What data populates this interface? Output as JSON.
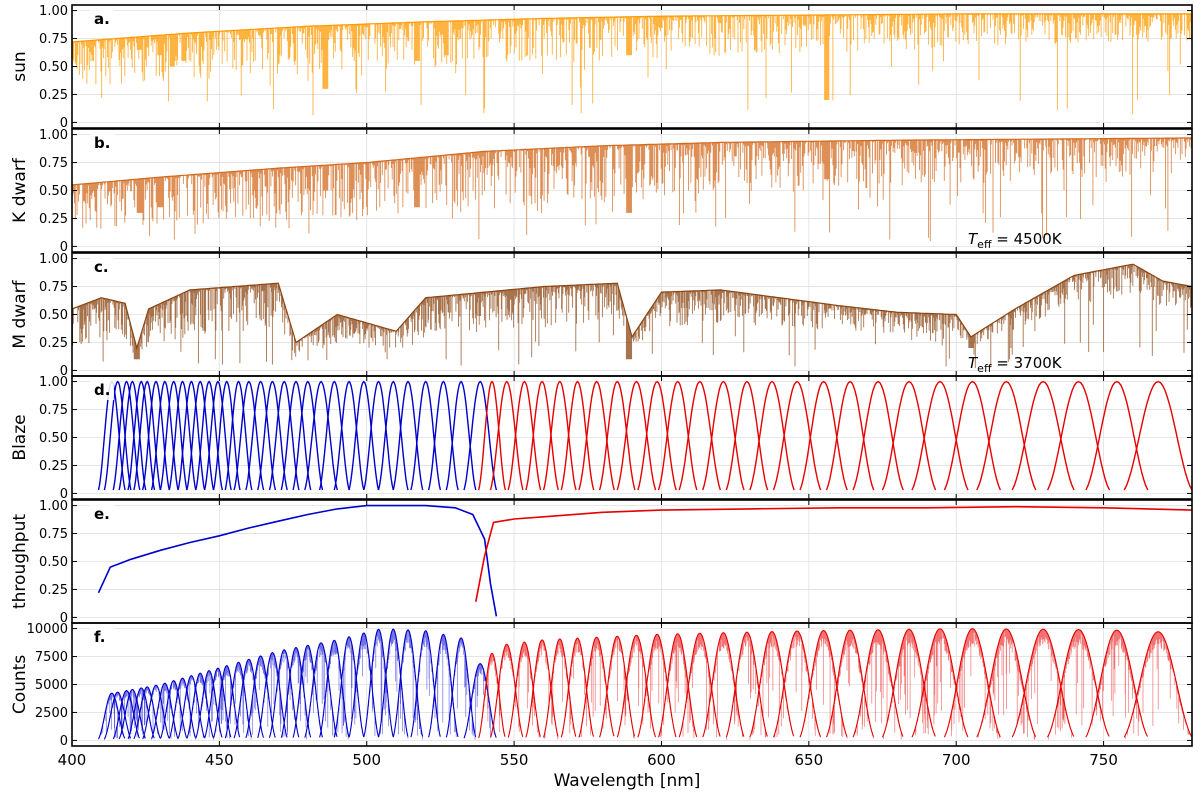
{
  "chart_data": {
    "type": "line",
    "xlabel": "Wavelength [nm]",
    "xlim": [
      400,
      780
    ],
    "xticks": [
      "400",
      "450",
      "500",
      "550",
      "600",
      "650",
      "700",
      "750"
    ],
    "xtick_values": [
      400,
      450,
      500,
      550,
      600,
      650,
      700,
      750
    ],
    "grid": true,
    "panels": [
      {
        "label": "a.",
        "ylabel": "sun",
        "ylim": [
          -0.05,
          1.05
        ],
        "yticks": [
          "0",
          "0.25",
          "0.50",
          "0.75",
          "1.00"
        ],
        "ytick_values": [
          0,
          0.25,
          0.5,
          0.75,
          1.0
        ],
        "annotation": "",
        "style": "spectrum",
        "series": [
          {
            "color": "#ff9900",
            "continuum": [
              [
                400,
                0.72
              ],
              [
                440,
                0.8
              ],
              [
                480,
                0.86
              ],
              [
                520,
                0.9
              ],
              [
                560,
                0.93
              ],
              [
                600,
                0.95
              ],
              [
                650,
                0.96
              ],
              [
                700,
                0.97
              ],
              [
                780,
                0.97
              ]
            ],
            "features": [
              [
                423,
                0.65
              ],
              [
                430,
                0.6
              ],
              [
                434,
                0.5
              ],
              [
                438,
                0.55
              ],
              [
                486,
                0.3
              ],
              [
                517,
                0.55
              ],
              [
                527,
                0.6
              ],
              [
                589,
                0.6
              ],
              [
                656,
                0.2
              ]
            ]
          }
        ]
      },
      {
        "label": "b.",
        "ylabel": "K dwarf",
        "ylim": [
          -0.05,
          1.05
        ],
        "yticks": [
          "0",
          "0.25",
          "0.50",
          "0.75",
          "1.00"
        ],
        "ytick_values": [
          0,
          0.25,
          0.5,
          0.75,
          1.0
        ],
        "annotation": "T_eff = 4500K",
        "annotation_parts": {
          "symbol": "T",
          "subscript": "eff",
          "value": " = 4500K"
        },
        "style": "spectrum",
        "series": [
          {
            "color": "#d2691e",
            "continuum": [
              [
                400,
                0.55
              ],
              [
                430,
                0.62
              ],
              [
                470,
                0.7
              ],
              [
                500,
                0.75
              ],
              [
                540,
                0.85
              ],
              [
                580,
                0.9
              ],
              [
                620,
                0.93
              ],
              [
                680,
                0.95
              ],
              [
                780,
                0.97
              ]
            ],
            "features": [
              [
                423,
                0.3
              ],
              [
                430,
                0.35
              ],
              [
                486,
                0.5
              ],
              [
                517,
                0.35
              ],
              [
                589,
                0.3
              ],
              [
                656,
                0.6
              ]
            ]
          }
        ]
      },
      {
        "label": "c.",
        "ylabel": "M dwarf",
        "ylim": [
          -0.05,
          1.05
        ],
        "yticks": [
          "0",
          "0.25",
          "0.50",
          "0.75",
          "1.00"
        ],
        "ytick_values": [
          0,
          0.25,
          0.5,
          0.75,
          1.0
        ],
        "annotation": "T_eff = 3700K",
        "annotation_parts": {
          "symbol": "T",
          "subscript": "eff",
          "value": " = 3700K"
        },
        "style": "spectrum",
        "series": [
          {
            "color": "#8b4513",
            "continuum": [
              [
                400,
                0.55
              ],
              [
                410,
                0.65
              ],
              [
                418,
                0.6
              ],
              [
                422,
                0.2
              ],
              [
                426,
                0.55
              ],
              [
                440,
                0.72
              ],
              [
                470,
                0.78
              ],
              [
                476,
                0.25
              ],
              [
                490,
                0.5
              ],
              [
                510,
                0.35
              ],
              [
                520,
                0.65
              ],
              [
                540,
                0.7
              ],
              [
                560,
                0.75
              ],
              [
                585,
                0.78
              ],
              [
                590,
                0.3
              ],
              [
                600,
                0.7
              ],
              [
                620,
                0.72
              ],
              [
                640,
                0.65
              ],
              [
                660,
                0.58
              ],
              [
                680,
                0.52
              ],
              [
                700,
                0.5
              ],
              [
                705,
                0.3
              ],
              [
                720,
                0.55
              ],
              [
                740,
                0.85
              ],
              [
                760,
                0.95
              ],
              [
                770,
                0.8
              ],
              [
                780,
                0.75
              ]
            ],
            "features": [
              [
                422,
                0.1
              ],
              [
                589,
                0.1
              ],
              [
                705,
                0.2
              ]
            ]
          }
        ]
      },
      {
        "label": "d.",
        "ylabel": "Blaze",
        "ylim": [
          -0.05,
          1.05
        ],
        "yticks": [
          "0",
          "0.25",
          "0.50",
          "0.75",
          "1.00"
        ],
        "ytick_values": [
          0,
          0.25,
          0.5,
          0.75,
          1.0
        ],
        "annotation": "",
        "style": "orders",
        "series": [
          {
            "color": "#0000cc",
            "peak": 1.0,
            "orders": [
              [
                409,
                418
              ],
              [
                411,
                420
              ],
              [
                414,
                423
              ],
              [
                416,
                425
              ],
              [
                419,
                428
              ],
              [
                421,
                430
              ],
              [
                424,
                433
              ],
              [
                427,
                436
              ],
              [
                430,
                439
              ],
              [
                433,
                442
              ],
              [
                436,
                445
              ],
              [
                439,
                448
              ],
              [
                442,
                451
              ],
              [
                445,
                454
              ],
              [
                448,
                457
              ],
              [
                452,
                461
              ],
              [
                455,
                465
              ],
              [
                459,
                469
              ],
              [
                463,
                473
              ],
              [
                467,
                477
              ],
              [
                471,
                481
              ],
              [
                475,
                485
              ],
              [
                479,
                490
              ],
              [
                484,
                494
              ],
              [
                489,
                499
              ],
              [
                494,
                504
              ],
              [
                499,
                509
              ],
              [
                504,
                514
              ],
              [
                509,
                519
              ],
              [
                515,
                525
              ],
              [
                521,
                531
              ],
              [
                527,
                537
              ],
              [
                533,
                544
              ]
            ]
          },
          {
            "color": "#e60000",
            "peak": 1.0,
            "orders": [
              [
                538,
                547
              ],
              [
                542,
                553
              ],
              [
                548,
                559
              ],
              [
                554,
                565
              ],
              [
                560,
                571
              ],
              [
                566,
                577
              ],
              [
                572,
                584
              ],
              [
                579,
                591
              ],
              [
                585,
                598
              ],
              [
                592,
                605
              ],
              [
                599,
                612
              ],
              [
                606,
                620
              ],
              [
                614,
                628
              ],
              [
                622,
                636
              ],
              [
                630,
                645
              ],
              [
                638,
                654
              ],
              [
                647,
                663
              ],
              [
                656,
                672
              ],
              [
                665,
                682
              ],
              [
                675,
                693
              ],
              [
                685,
                704
              ],
              [
                696,
                715
              ],
              [
                707,
                727
              ],
              [
                719,
                740
              ],
              [
                731,
                752
              ],
              [
                744,
                765
              ],
              [
                757,
                780
              ]
            ]
          }
        ]
      },
      {
        "label": "e.",
        "ylabel": "throughput",
        "ylim": [
          -0.05,
          1.05
        ],
        "yticks": [
          "0",
          "0.25",
          "0.50",
          "0.75",
          "1.00"
        ],
        "ytick_values": [
          0,
          0.25,
          0.5,
          0.75,
          1.0
        ],
        "annotation": "",
        "style": "line",
        "series": [
          {
            "color": "#0000cc",
            "points": [
              [
                409,
                0.22
              ],
              [
                413,
                0.45
              ],
              [
                420,
                0.52
              ],
              [
                430,
                0.6
              ],
              [
                440,
                0.67
              ],
              [
                450,
                0.73
              ],
              [
                460,
                0.8
              ],
              [
                470,
                0.86
              ],
              [
                480,
                0.92
              ],
              [
                490,
                0.97
              ],
              [
                500,
                1.0
              ],
              [
                510,
                1.0
              ],
              [
                520,
                1.0
              ],
              [
                530,
                0.98
              ],
              [
                536,
                0.92
              ],
              [
                540,
                0.7
              ],
              [
                542,
                0.3
              ],
              [
                544,
                0.01
              ]
            ]
          },
          {
            "color": "#e60000",
            "points": [
              [
                537,
                0.14
              ],
              [
                540,
                0.55
              ],
              [
                543,
                0.85
              ],
              [
                550,
                0.88
              ],
              [
                560,
                0.9
              ],
              [
                580,
                0.94
              ],
              [
                600,
                0.96
              ],
              [
                630,
                0.97
              ],
              [
                660,
                0.98
              ],
              [
                690,
                0.98
              ],
              [
                720,
                0.99
              ],
              [
                750,
                0.98
              ],
              [
                780,
                0.96
              ]
            ]
          }
        ]
      },
      {
        "label": "f.",
        "ylabel": "Counts",
        "ylim": [
          -500,
          10500
        ],
        "yticks": [
          "0",
          "2500",
          "5000",
          "7500",
          "10000"
        ],
        "ytick_values": [
          0,
          2500,
          5000,
          7500,
          10000
        ],
        "annotation": "",
        "style": "counts",
        "series": [
          {
            "color": "#0000cc",
            "orders_ref": 0,
            "envelope": [
              [
                409,
                4000
              ],
              [
                430,
                5000
              ],
              [
                450,
                6500
              ],
              [
                470,
                8000
              ],
              [
                490,
                9000
              ],
              [
                505,
                10000
              ],
              [
                520,
                9800
              ],
              [
                535,
                9000
              ],
              [
                544,
                3500
              ]
            ]
          },
          {
            "color": "#e60000",
            "orders_ref": 1,
            "envelope": [
              [
                538,
                6500
              ],
              [
                545,
                8500
              ],
              [
                560,
                9000
              ],
              [
                600,
                9500
              ],
              [
                650,
                9800
              ],
              [
                700,
                10000
              ],
              [
                750,
                9900
              ],
              [
                780,
                9600
              ]
            ]
          }
        ]
      }
    ]
  }
}
